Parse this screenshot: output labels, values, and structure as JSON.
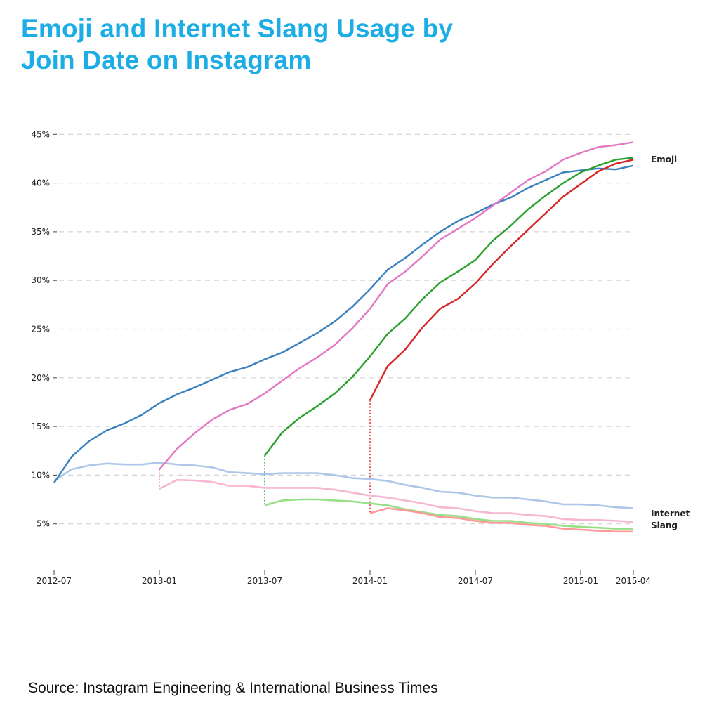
{
  "title": {
    "line1": "Emoji and Internet Slang Usage by",
    "line2": "Join Date on Instagram"
  },
  "source": "Source: Instagram Engineering & International Business Times",
  "chart_data": {
    "type": "line",
    "x_start": "2012-07",
    "x_end": "2015-04",
    "x_step": "month",
    "xlabel": "",
    "ylabel": "",
    "ylim": [
      0,
      46
    ],
    "grid": true,
    "x_ticks": [
      "2012-07",
      "2013-01",
      "2013-07",
      "2014-01",
      "2014-07",
      "2015-01",
      "2015-04"
    ],
    "y_ticks": [
      5,
      10,
      15,
      20,
      25,
      30,
      35,
      40,
      45
    ],
    "y_tick_labels": [
      "5%",
      "10%",
      "15%",
      "20%",
      "25%",
      "30%",
      "35%",
      "40%",
      "45%"
    ],
    "annotations": {
      "emoji": "Emoji",
      "slang_line1": "Internet",
      "slang_line2": "Slang"
    },
    "series": [
      {
        "group": "emoji",
        "start": "2012-07",
        "color": "#3a7fbf",
        "values": [
          9.2,
          11.9,
          13.5,
          14.6,
          15.3,
          16.2,
          17.4,
          18.3,
          19.0,
          19.8,
          20.6,
          21.1,
          21.9,
          22.6,
          23.6,
          24.6,
          25.8,
          27.3,
          29.1,
          31.1,
          32.3,
          33.7,
          35.0,
          36.1,
          36.9,
          37.8,
          38.5,
          39.5,
          40.3,
          41.1,
          41.3,
          41.5,
          41.4,
          41.8
        ]
      },
      {
        "group": "emoji",
        "start": "2013-01",
        "color": "#e377c2",
        "values": [
          10.6,
          12.7,
          14.3,
          15.7,
          16.7,
          17.3,
          18.4,
          19.7,
          21.0,
          22.1,
          23.4,
          25.1,
          27.1,
          29.6,
          30.9,
          32.5,
          34.2,
          35.3,
          36.4,
          37.7,
          39.0,
          40.3,
          41.2,
          42.4,
          43.1,
          43.7,
          43.9,
          44.2
        ]
      },
      {
        "group": "emoji",
        "start": "2013-07",
        "color": "#2ca02c",
        "values": [
          12.0,
          14.4,
          15.9,
          17.1,
          18.4,
          20.1,
          22.2,
          24.5,
          26.1,
          28.1,
          29.8,
          30.9,
          32.1,
          34.1,
          35.6,
          37.3,
          38.7,
          40.0,
          41.1,
          41.8,
          42.4,
          42.6
        ]
      },
      {
        "group": "emoji",
        "start": "2014-01",
        "color": "#d62728",
        "values": [
          17.7,
          21.2,
          22.9,
          25.2,
          27.1,
          28.1,
          29.7,
          31.7,
          33.5,
          35.2,
          36.9,
          38.6,
          39.9,
          41.2,
          42.0,
          42.4
        ]
      },
      {
        "group": "slang",
        "start": "2012-07",
        "color": "#aec7e8",
        "values": [
          9.4,
          10.6,
          11.0,
          11.2,
          11.1,
          11.1,
          11.3,
          11.1,
          11.0,
          10.8,
          10.3,
          10.2,
          10.1,
          10.2,
          10.2,
          10.2,
          10.0,
          9.7,
          9.6,
          9.4,
          9.0,
          8.7,
          8.3,
          8.2,
          7.9,
          7.7,
          7.7,
          7.5,
          7.3,
          7.0,
          7.0,
          6.9,
          6.7,
          6.6
        ]
      },
      {
        "group": "slang",
        "start": "2013-01",
        "color": "#f7b6d2",
        "values": [
          8.6,
          9.5,
          9.45,
          9.3,
          8.9,
          8.9,
          8.7,
          8.7,
          8.7,
          8.7,
          8.5,
          8.2,
          7.9,
          7.7,
          7.4,
          7.1,
          6.7,
          6.6,
          6.3,
          6.1,
          6.1,
          5.9,
          5.8,
          5.5,
          5.4,
          5.4,
          5.3,
          5.2
        ]
      },
      {
        "group": "slang",
        "start": "2013-07",
        "color": "#98df8a",
        "values": [
          6.9,
          7.4,
          7.5,
          7.5,
          7.4,
          7.3,
          7.1,
          6.9,
          6.5,
          6.2,
          5.9,
          5.8,
          5.5,
          5.3,
          5.3,
          5.1,
          5.0,
          4.8,
          4.7,
          4.6,
          4.5,
          4.5
        ]
      },
      {
        "group": "slang",
        "start": "2014-01",
        "color": "#ff9896",
        "values": [
          6.1,
          6.6,
          6.4,
          6.1,
          5.7,
          5.6,
          5.3,
          5.1,
          5.1,
          4.9,
          4.8,
          4.5,
          4.4,
          4.3,
          4.2,
          4.2
        ]
      }
    ]
  }
}
